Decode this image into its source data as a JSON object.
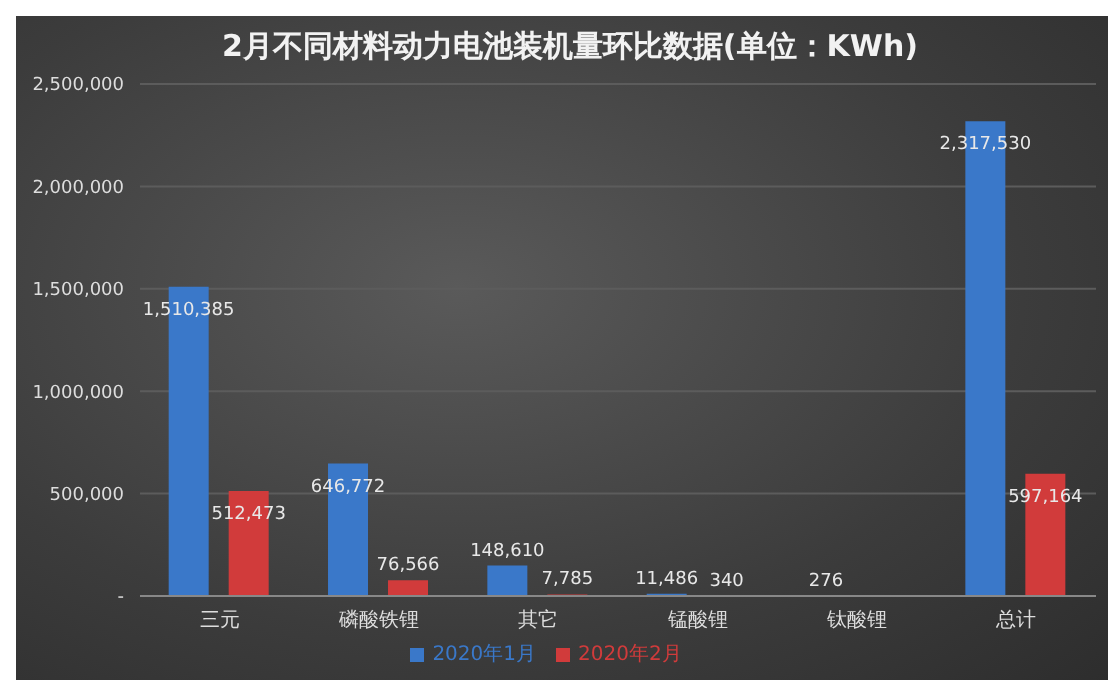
{
  "chart_data": {
    "type": "bar",
    "title": "2月不同材料动力电池装机量环比数据(单位：KWh)",
    "categories": [
      "三元",
      "磷酸铁锂",
      "其它",
      "锰酸锂",
      "钛酸锂",
      "总计"
    ],
    "series": [
      {
        "name": "2020年1月",
        "color": "#3a78c9",
        "values": [
          1510385,
          646772,
          148610,
          11486,
          276,
          2317530
        ],
        "value_labels": [
          "1,510,385",
          "646,772",
          "148,610",
          "11,486",
          "276",
          "2,317,530"
        ]
      },
      {
        "name": "2020年2月",
        "color": "#d13b3b",
        "values": [
          512473,
          76566,
          7785,
          340,
          null,
          597164
        ],
        "value_labels": [
          "512,473",
          "76,566",
          "7,785",
          "340",
          null,
          "597,164"
        ]
      }
    ],
    "ylim": [
      0,
      2500000
    ],
    "yticks": [
      {
        "value": 0,
        "label": "-"
      },
      {
        "value": 500000,
        "label": "500,000"
      },
      {
        "value": 1000000,
        "label": "1,000,000"
      },
      {
        "value": 1500000,
        "label": "1,500,000"
      },
      {
        "value": 2000000,
        "label": "2,000,000"
      },
      {
        "value": 2500000,
        "label": "2,500,000"
      }
    ],
    "grid": "y",
    "legend": "bottom"
  }
}
